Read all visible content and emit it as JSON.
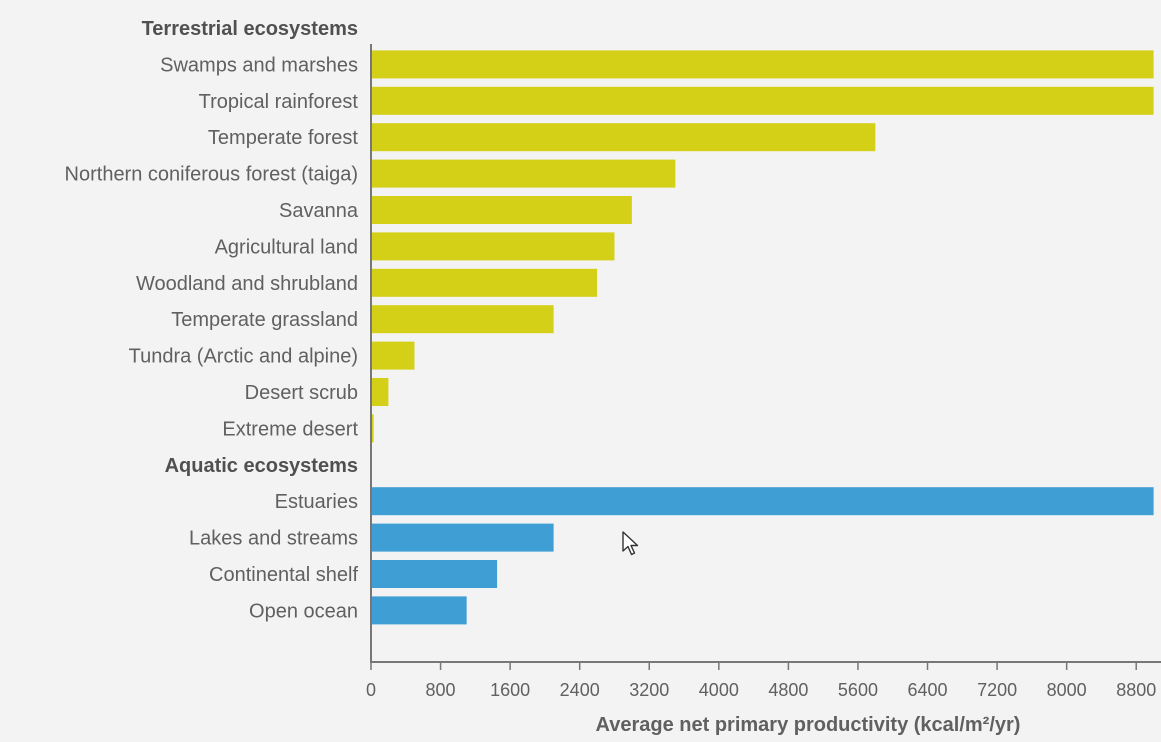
{
  "chart_data": {
    "type": "bar",
    "orientation": "horizontal",
    "xlabel": "Average net primary productivity (kcal/m²/yr)",
    "xlim": [
      0,
      9200
    ],
    "xticks": [
      0,
      800,
      1600,
      2400,
      3200,
      4000,
      4800,
      5600,
      6400,
      7200,
      8000,
      8800
    ],
    "grid": false,
    "groups": [
      {
        "name": "Terrestrial ecosystems",
        "color": "#d4d018",
        "categories": [
          "Swamps and marshes",
          "Tropical rainforest",
          "Temperate forest",
          "Northern coniferous forest (taiga)",
          "Savanna",
          "Agricultural land",
          "Woodland and shrubland",
          "Temperate grassland",
          "Tundra (Arctic and alpine)",
          "Desert scrub",
          "Extreme desert"
        ],
        "values": [
          9000,
          9000,
          5800,
          3500,
          3000,
          2800,
          2600,
          2100,
          500,
          200,
          30
        ]
      },
      {
        "name": "Aquatic ecosystems",
        "color": "#3f9fd4",
        "categories": [
          "Estuaries",
          "Lakes and streams",
          "Continental shelf",
          "Open ocean"
        ],
        "values": [
          9000,
          2100,
          1450,
          1100
        ]
      }
    ]
  },
  "cursor": {
    "icon": "mouse-pointer-icon"
  }
}
